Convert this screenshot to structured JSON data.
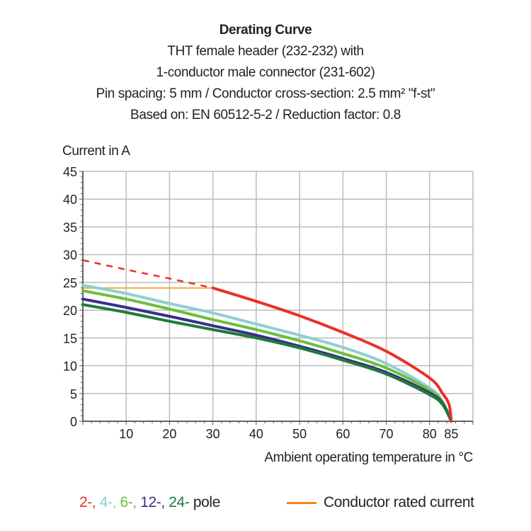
{
  "titles": [
    "Derating Curve",
    "THT female header (232-232) with",
    "1-conductor male connector (231-602)",
    "Pin spacing: 5 mm / Conductor cross-section: 2.5 mm² \"f-st\"",
    "Based on: EN 60512-5-2 / Reduction factor: 0.8"
  ],
  "chart_data": {
    "type": "line",
    "title": "Derating Curve",
    "xlabel": "Ambient operating temperature in °C",
    "ylabel": "Current in A",
    "xlim": [
      0,
      90
    ],
    "ylim": [
      0,
      45
    ],
    "xticks": [
      "10",
      "20",
      "30",
      "40",
      "50",
      "60",
      "70",
      "80",
      "85"
    ],
    "xtick_values": [
      10,
      20,
      30,
      40,
      50,
      60,
      70,
      80,
      85
    ],
    "yticks": [
      "0",
      "5",
      "10",
      "15",
      "20",
      "25",
      "30",
      "35",
      "40",
      "45"
    ],
    "ytick_values": [
      0,
      5,
      10,
      15,
      20,
      25,
      30,
      35,
      40,
      45
    ],
    "grid": true,
    "series": [
      {
        "key": "2",
        "color": "#e8312a",
        "dashed_until": 30,
        "points": [
          [
            0,
            29
          ],
          [
            10,
            27.3
          ],
          [
            20,
            25.7
          ],
          [
            30,
            24
          ],
          [
            40,
            21.6
          ],
          [
            50,
            19
          ],
          [
            60,
            16
          ],
          [
            70,
            12.6
          ],
          [
            80,
            7.8
          ],
          [
            83,
            5
          ],
          [
            84.5,
            3
          ],
          [
            85,
            0
          ]
        ]
      },
      {
        "key": "4",
        "color": "#8fcfd0",
        "points": [
          [
            0,
            24.5
          ],
          [
            10,
            23
          ],
          [
            20,
            21.2
          ],
          [
            30,
            19.5
          ],
          [
            40,
            17.5
          ],
          [
            50,
            15.5
          ],
          [
            60,
            13.3
          ],
          [
            70,
            10.4
          ],
          [
            80,
            6
          ],
          [
            83,
            3.5
          ],
          [
            85,
            0
          ]
        ]
      },
      {
        "key": "6",
        "color": "#6cbf3c",
        "points": [
          [
            0,
            23.5
          ],
          [
            10,
            22
          ],
          [
            20,
            20.2
          ],
          [
            30,
            18.3
          ],
          [
            40,
            16.5
          ],
          [
            50,
            14.5
          ],
          [
            60,
            12.2
          ],
          [
            70,
            9.6
          ],
          [
            80,
            5.6
          ],
          [
            83,
            3.4
          ],
          [
            85,
            0
          ]
        ]
      },
      {
        "key": "12",
        "color": "#3a2e8c",
        "points": [
          [
            0,
            22
          ],
          [
            10,
            20.5
          ],
          [
            20,
            18.9
          ],
          [
            30,
            17.2
          ],
          [
            40,
            15.5
          ],
          [
            50,
            13.5
          ],
          [
            60,
            11.3
          ],
          [
            70,
            8.8
          ],
          [
            80,
            5.1
          ],
          [
            83,
            3.2
          ],
          [
            85,
            0
          ]
        ]
      },
      {
        "key": "24",
        "color": "#1f7a3a",
        "points": [
          [
            0,
            21
          ],
          [
            10,
            19.6
          ],
          [
            20,
            18
          ],
          [
            30,
            16.5
          ],
          [
            40,
            15
          ],
          [
            50,
            13.2
          ],
          [
            60,
            11
          ],
          [
            70,
            8.5
          ],
          [
            80,
            4.8
          ],
          [
            83,
            3
          ],
          [
            85,
            0
          ]
        ]
      },
      {
        "key": "conductor",
        "name": "Conductor rated current",
        "color": "#f7a83a",
        "points": [
          [
            0,
            24
          ],
          [
            30,
            24
          ]
        ]
      }
    ]
  },
  "legend": {
    "poles": [
      {
        "text": "2-,",
        "color": "#e8312a"
      },
      {
        "text": " 4-,",
        "color": "#8fcfd0"
      },
      {
        "text": " 6-,",
        "color": "#6cbf3c"
      },
      {
        "text": " 12-,",
        "color": "#3a2e8c"
      },
      {
        "text": " 24-",
        "color": "#1f7a3a"
      },
      {
        "text": " pole",
        "color": "#222222"
      }
    ],
    "conductor": "Conductor rated current",
    "conductor_color": "#f58220"
  }
}
